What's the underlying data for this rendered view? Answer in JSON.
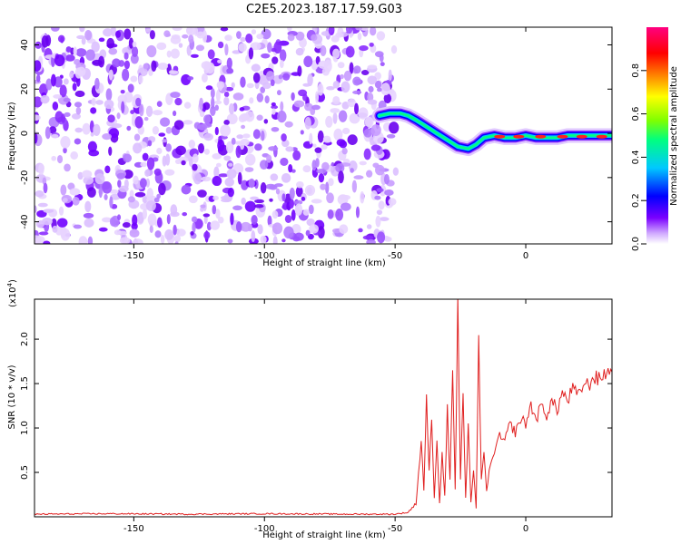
{
  "figure_title": "C2E5.2023.187.17.59.G03",
  "chart_data": [
    {
      "type": "heatmap",
      "title": "",
      "xlabel": "Height of straight line (km)",
      "ylabel": "Frequency (Hz)",
      "xlim": [
        -188,
        33
      ],
      "ylim": [
        -50,
        48
      ],
      "x_ticks": [
        -150,
        -100,
        -50,
        0
      ],
      "y_ticks": [
        -40,
        -20,
        0,
        20,
        40
      ],
      "colorbar": {
        "label": "Normalized spectral amplitude",
        "range": [
          0,
          1
        ],
        "ticks": [
          0.0,
          0.2,
          0.4,
          0.6,
          0.8
        ],
        "colors": [
          "#ffffff",
          "#cfa8ff",
          "#7a00ff",
          "#0000ff",
          "#00c8ff",
          "#00ff80",
          "#80ff00",
          "#ffff00",
          "#ff8000",
          "#ff0000",
          "#ff0080"
        ]
      },
      "noise_region": {
        "x_range": [
          -188,
          -51
        ],
        "y_range": [
          -50,
          48
        ]
      },
      "signal_track": {
        "x": [
          -56,
          -52,
          -48,
          -45,
          -42,
          -38,
          -34,
          -30,
          -26,
          -22,
          -19,
          -16,
          -12,
          -8,
          -4,
          0,
          4,
          8,
          12,
          16,
          20,
          24,
          28,
          33
        ],
        "y": [
          8,
          9,
          9,
          8,
          6,
          3,
          0,
          -3,
          -6,
          -7,
          -5,
          -2,
          -1,
          -2,
          -2,
          -1,
          -2,
          -2,
          -2,
          -1,
          -1,
          -1,
          -1,
          -1
        ]
      }
    },
    {
      "type": "line",
      "title": "",
      "xlabel": "Height of straight line (km)",
      "ylabel": "SNR (10 * v/v)",
      "y_multiplier": "(x10^4)",
      "y_multiplier_base": "(x10",
      "y_multiplier_exp": "4",
      "y_multiplier_close": ")",
      "xlim": [
        -188,
        33
      ],
      "ylim": [
        0,
        24500
      ],
      "x_ticks": [
        -150,
        -100,
        -50,
        0
      ],
      "y_ticks": [
        5000,
        10000,
        15000,
        20000
      ],
      "y_tick_labels": [
        "0.5",
        "1.0",
        "1.5",
        "2.0"
      ],
      "series": [
        {
          "color": "#e02020",
          "x": [
            -188,
            -160,
            -130,
            -100,
            -70,
            -50,
            -45,
            -42,
            -40,
            -39,
            -38,
            -37,
            -36,
            -35,
            -34,
            -33,
            -32,
            -31,
            -30,
            -29,
            -28,
            -27,
            -26,
            -25,
            -24,
            -23,
            -22,
            -21,
            -20,
            -19,
            -18,
            -17,
            -16,
            -15,
            -14,
            -12,
            -10,
            -8,
            -6,
            -4,
            -2,
            0,
            2,
            4,
            6,
            8,
            10,
            12,
            14,
            16,
            18,
            20,
            22,
            24,
            26,
            28,
            30,
            33
          ],
          "y": [
            300,
            350,
            300,
            350,
            300,
            300,
            500,
            1500,
            8500,
            3000,
            13500,
            5000,
            11000,
            2000,
            9000,
            1500,
            7000,
            2500,
            12000,
            4000,
            17000,
            3000,
            24500,
            4000,
            14000,
            2000,
            10000,
            1500,
            5500,
            1000,
            19800,
            4000,
            7000,
            3000,
            5000,
            7500,
            9000,
            8500,
            10500,
            9500,
            11000,
            10500,
            12500,
            11000,
            12500,
            11500,
            13000,
            12000,
            14000,
            13000,
            14500,
            13500,
            15000,
            14800,
            15800,
            15400,
            16200,
            16300
          ]
        }
      ]
    }
  ]
}
